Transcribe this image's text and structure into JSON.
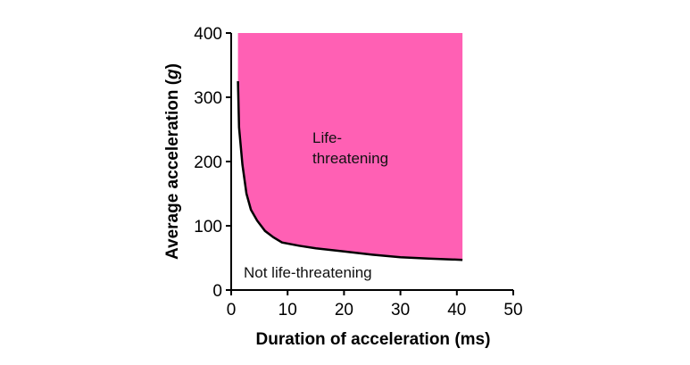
{
  "chart_data": {
    "type": "area",
    "title": "",
    "xlabel": "Duration of acceleration (ms)",
    "ylabel_prefix": "Average acceleration (",
    "ylabel_unit": "g",
    "ylabel_suffix": ")",
    "xlim": [
      0,
      50
    ],
    "ylim": [
      0,
      400
    ],
    "xticks": [
      0,
      10,
      20,
      30,
      40,
      50
    ],
    "yticks": [
      0,
      100,
      200,
      300,
      400
    ],
    "grid": false,
    "fill_color": "#ff60b4",
    "line_color": "#000000",
    "series": [
      {
        "name": "threshold",
        "x": [
          1.2,
          1.4,
          2.0,
          2.7,
          3.5,
          4.6,
          6.0,
          7.5,
          9.0,
          12,
          15,
          20,
          25,
          30,
          35,
          41
        ],
        "y": [
          325,
          253,
          195,
          150,
          125,
          108,
          92,
          82,
          74,
          69,
          65,
          60,
          55,
          51,
          49,
          47
        ]
      }
    ],
    "fill_region": {
      "x_max": 41,
      "y_max": 400
    },
    "annotations": {
      "upper_line1": "Life-",
      "upper_line2": "threatening",
      "lower": "Not life-threatening"
    }
  }
}
